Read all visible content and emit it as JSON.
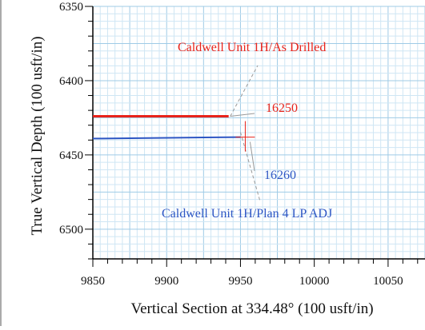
{
  "chart_data": {
    "type": "line",
    "xlabel": "Vertical Section at 334.48° (100 usft/in)",
    "ylabel": "True Vertical Depth (100 usft/in)",
    "xlim": [
      9850,
      10075
    ],
    "ylim": [
      6350,
      6520
    ],
    "y_inverted": true,
    "grid": true,
    "x_ticks": [
      9850,
      9900,
      9950,
      10000,
      10050
    ],
    "y_ticks": [
      6350,
      6400,
      6450,
      6500
    ],
    "series": [
      {
        "name": "Caldwell Unit 1H/As Drilled",
        "color": "#e8231a",
        "x": [
          9850,
          9942
        ],
        "y": [
          6424,
          6424
        ]
      },
      {
        "name": "Caldwell Unit 1H/Plan 4 LP ADJ",
        "color": "#2d56c4",
        "x": [
          9850,
          9950
        ],
        "y": [
          6439,
          6438
        ]
      }
    ],
    "annotations": [
      {
        "text": "Caldwell Unit 1H/As Drilled",
        "color": "#e8231a"
      },
      {
        "text": "16250",
        "color": "#e8231a"
      },
      {
        "text": "16260",
        "color": "#2d56c4"
      },
      {
        "text": "Caldwell Unit 1H/Plan 4 LP ADJ",
        "color": "#2d56c4"
      }
    ],
    "colors": {
      "grid_minor": "#cfe6f4",
      "grid_major": "#9fcbe6",
      "axis": "#000000"
    }
  }
}
